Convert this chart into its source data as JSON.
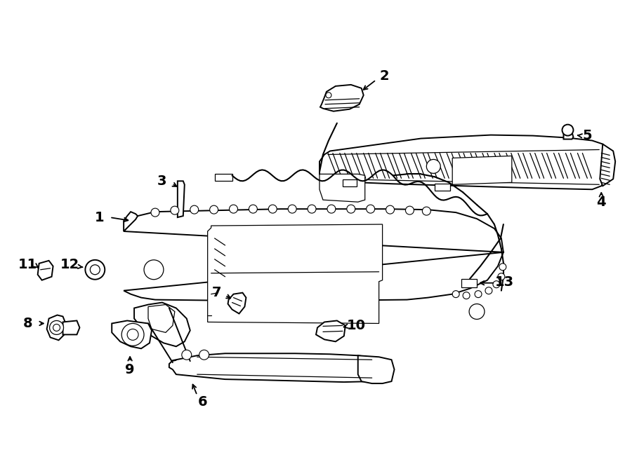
{
  "background_color": "#ffffff",
  "line_color": "#000000",
  "fig_width": 9.0,
  "fig_height": 6.62,
  "dpi": 100,
  "label_fontsize": 14,
  "arrow_lw": 1.3,
  "draw_lw": 1.4,
  "thin_lw": 0.9
}
